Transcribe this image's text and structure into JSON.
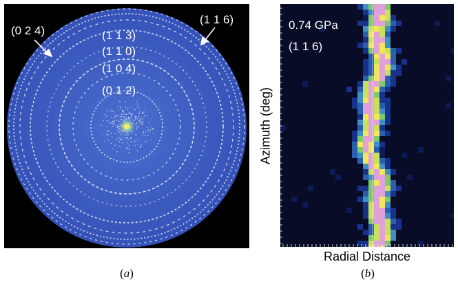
{
  "panel_a": {
    "labels": {
      "r024": "(0 2 4)",
      "r116": "(1 1 6)",
      "r113": "(1 1 3)",
      "r110": "(1 1 0)",
      "r104": "(1 0 4)",
      "r012": "(0 1 2)"
    },
    "caption": "a",
    "colors": {
      "background": "#000000",
      "detector": "#3d5dc4",
      "rings": "#e8eef5",
      "center": "#f5e85a"
    }
  },
  "panel_b": {
    "pressure": "0.74 GPa",
    "reflection": "(1 1 6)",
    "ylabel": "Azimuth (deg)",
    "xlabel": "Radial Distance",
    "caption": "b",
    "colors": {
      "background": "#0a0f2a",
      "hot": "#f2e65a",
      "warm": "#7fc96b",
      "cool": "#2a5fb0"
    }
  }
}
